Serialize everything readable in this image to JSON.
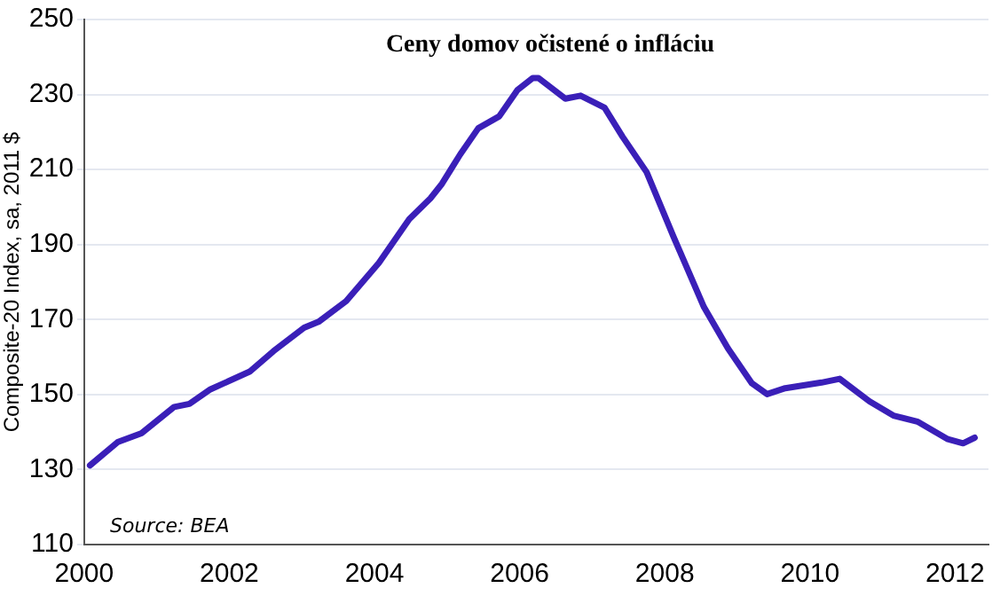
{
  "chart_data": {
    "type": "line",
    "title": "Ceny domov očistené o infláciu",
    "ylabel": "Composite-20 Index, sa, 2011 $",
    "x": [
      2000.08,
      2000.46,
      2000.79,
      2001.24,
      2001.45,
      2001.74,
      2002.28,
      2002.61,
      2003.03,
      2003.23,
      2003.61,
      2004.06,
      2004.48,
      2004.77,
      2004.93,
      2005.18,
      2005.43,
      2005.72,
      2005.97,
      2006.18,
      2006.26,
      2006.63,
      2006.84,
      2007.17,
      2007.42,
      2007.75,
      2008.12,
      2008.54,
      2008.87,
      2009.2,
      2009.41,
      2009.66,
      2010.16,
      2010.41,
      2010.82,
      2011.15,
      2011.48,
      2011.9,
      2012.11,
      2012.27
    ],
    "series": [
      {
        "color": "#3a1fb8",
        "values": [
          131.1,
          137.3,
          139.7,
          146.7,
          147.5,
          151.4,
          156.1,
          161.6,
          167.8,
          169.4,
          174.9,
          185.1,
          196.8,
          202.3,
          206.2,
          214.0,
          221.0,
          224.2,
          231.2,
          234.4,
          234.4,
          228.9,
          229.7,
          226.5,
          218.7,
          209.3,
          192.1,
          173.3,
          162.3,
          153.0,
          150.1,
          151.7,
          153.2,
          154.2,
          148.2,
          144.4,
          142.8,
          138.1,
          137.0,
          138.5
        ]
      }
    ],
    "xlim": [
      2000,
      2012.46
    ],
    "xticks": [
      2000,
      2002,
      2004,
      2006,
      2008,
      2010,
      2012
    ],
    "ylim": [
      110,
      250
    ],
    "yticks": [
      110,
      130,
      150,
      170,
      190,
      210,
      230,
      250
    ],
    "grid": "y",
    "legend": false,
    "marker": "none",
    "line_style": "solid",
    "annotations": [
      "Source: BEA"
    ]
  }
}
